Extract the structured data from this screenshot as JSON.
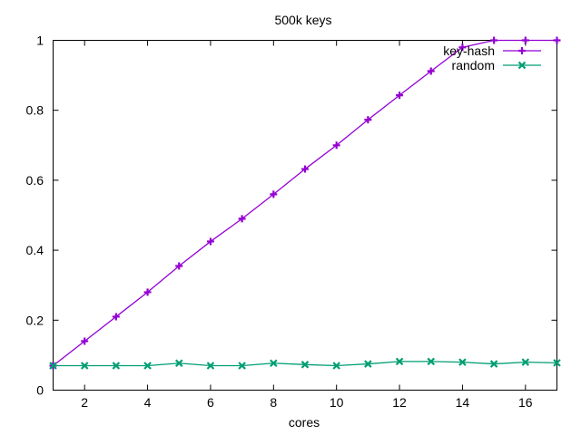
{
  "chart_data": {
    "type": "line",
    "title": "500k keys",
    "xlabel": "cores",
    "ylabel": "",
    "xlim": [
      1,
      17
    ],
    "ylim": [
      0,
      1
    ],
    "xticks": [
      2,
      4,
      6,
      8,
      10,
      12,
      14,
      16
    ],
    "yticks": [
      0,
      0.2,
      0.4,
      0.6,
      0.8,
      1
    ],
    "ytick_labels": [
      "0",
      "0.2",
      "0.4",
      "0.6",
      "0.8",
      "1"
    ],
    "grid": false,
    "legend_position": "top-right",
    "x": [
      1,
      2,
      3,
      4,
      5,
      6,
      7,
      8,
      9,
      10,
      11,
      12,
      13,
      14,
      15,
      16,
      17
    ],
    "series": [
      {
        "name": "key-hash",
        "color": "#9400d3",
        "marker": "plus",
        "values": [
          0.07,
          0.14,
          0.21,
          0.28,
          0.355,
          0.425,
          0.49,
          0.56,
          0.632,
          0.7,
          0.773,
          0.843,
          0.912,
          0.98,
          1.0,
          1.0,
          1.0
        ]
      },
      {
        "name": "random",
        "color": "#009e73",
        "marker": "cross",
        "values": [
          0.07,
          0.07,
          0.07,
          0.07,
          0.077,
          0.07,
          0.07,
          0.077,
          0.073,
          0.07,
          0.075,
          0.082,
          0.082,
          0.08,
          0.075,
          0.08,
          0.078
        ]
      }
    ]
  }
}
